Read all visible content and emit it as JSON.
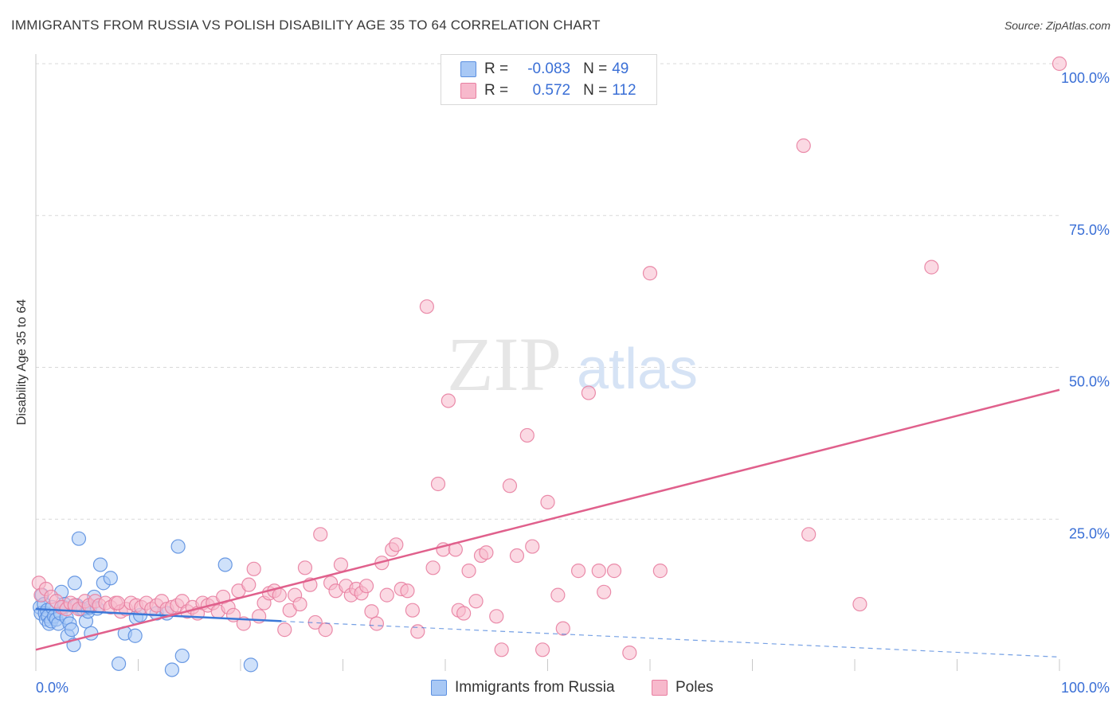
{
  "title": "IMMIGRANTS FROM RUSSIA VS POLISH DISABILITY AGE 35 TO 64 CORRELATION CHART",
  "source": "Source: ZipAtlas.com",
  "watermark": {
    "zip": "ZIP",
    "atlas": "atlas"
  },
  "legend": {
    "rows": [
      {
        "r_label": "R =",
        "r_value": "-0.083",
        "n_label": "N =",
        "n_value": "49"
      },
      {
        "r_label": "R =",
        "r_value": "0.572",
        "n_label": "N =",
        "n_value": "112"
      }
    ]
  },
  "bottom_legend": {
    "series1": "Immigrants from Russia",
    "series2": "Poles"
  },
  "colors": {
    "blue_fill": "#a8c8f5",
    "blue_stroke": "#5b8fe0",
    "blue_line": "#3b78d8",
    "pink_fill": "#f7b9cc",
    "pink_stroke": "#e87fa1",
    "pink_line": "#e0608c",
    "axis_text": "#3a6fd6",
    "grid": "#d9d9d9"
  },
  "chart_data": {
    "type": "scatter",
    "title": "IMMIGRANTS FROM RUSSIA VS POLISH DISABILITY AGE 35 TO 64 CORRELATION CHART",
    "xlabel": "",
    "ylabel": "Disability Age 35 to 64",
    "xlim": [
      0,
      100
    ],
    "ylim": [
      0,
      100
    ],
    "x_tick_labels": [
      "0.0%",
      "100.0%"
    ],
    "y_tick_labels": [
      "25.0%",
      "50.0%",
      "75.0%",
      "100.0%"
    ],
    "y_ticks": [
      25,
      50,
      75,
      100
    ],
    "series": [
      {
        "name": "Immigrants from Russia",
        "R": -0.083,
        "N": 49,
        "trend_solid": {
          "x": [
            0,
            24
          ],
          "y": [
            10.2,
            8.2
          ]
        },
        "trend_dashed": {
          "x": [
            24,
            100
          ],
          "y": [
            8.2,
            2.3
          ]
        },
        "points": [
          [
            0.4,
            10.5
          ],
          [
            0.5,
            9.5
          ],
          [
            0.6,
            12.5
          ],
          [
            0.8,
            11
          ],
          [
            0.9,
            9.5
          ],
          [
            1.0,
            8.5
          ],
          [
            1.1,
            10
          ],
          [
            1.2,
            9
          ],
          [
            1.3,
            7.8
          ],
          [
            1.5,
            8.2
          ],
          [
            1.6,
            10.5
          ],
          [
            1.8,
            9
          ],
          [
            2.0,
            8.5
          ],
          [
            2.2,
            7.8
          ],
          [
            2.4,
            9.5
          ],
          [
            2.5,
            13
          ],
          [
            2.7,
            10.5
          ],
          [
            2.8,
            11
          ],
          [
            3.0,
            8.8
          ],
          [
            3.1,
            5.8
          ],
          [
            3.3,
            7.8
          ],
          [
            3.5,
            6.8
          ],
          [
            3.7,
            4.3
          ],
          [
            3.8,
            14.5
          ],
          [
            4.0,
            10.8
          ],
          [
            4.2,
            21.8
          ],
          [
            4.4,
            10.2
          ],
          [
            4.6,
            10.2
          ],
          [
            4.9,
            8.2
          ],
          [
            5.1,
            9.8
          ],
          [
            5.3,
            10.5
          ],
          [
            5.4,
            6.2
          ],
          [
            5.7,
            12.2
          ],
          [
            6.3,
            17.5
          ],
          [
            6.6,
            14.5
          ],
          [
            7.3,
            15.3
          ],
          [
            8.1,
            1.2
          ],
          [
            8.7,
            6.2
          ],
          [
            9.7,
            5.8
          ],
          [
            9.8,
            8.8
          ],
          [
            10.2,
            9.2
          ],
          [
            11.8,
            9.5
          ],
          [
            12.8,
            9.5
          ],
          [
            13.3,
            0.2
          ],
          [
            13.9,
            20.5
          ],
          [
            14.3,
            2.5
          ],
          [
            18.5,
            17.5
          ],
          [
            21.0,
            1.0
          ],
          [
            6.0,
            10.3
          ]
        ]
      },
      {
        "name": "Poles",
        "R": 0.572,
        "N": 112,
        "trend_solid": {
          "x": [
            0,
            100
          ],
          "y": [
            3.5,
            46.3
          ]
        },
        "points": [
          [
            0.3,
            14.5
          ],
          [
            0.5,
            12.5
          ],
          [
            1.0,
            13.5
          ],
          [
            1.5,
            12.2
          ],
          [
            2.0,
            11.5
          ],
          [
            2.5,
            10.5
          ],
          [
            3.0,
            10.2
          ],
          [
            3.4,
            11.2
          ],
          [
            3.8,
            10.8
          ],
          [
            4.2,
            10.2
          ],
          [
            4.8,
            11.5
          ],
          [
            5.2,
            10.8
          ],
          [
            5.8,
            11.5
          ],
          [
            6.2,
            10.8
          ],
          [
            6.8,
            11.2
          ],
          [
            7.3,
            10.5
          ],
          [
            7.8,
            11.2
          ],
          [
            8.3,
            9.8
          ],
          [
            8.8,
            10.2
          ],
          [
            9.3,
            11.2
          ],
          [
            9.8,
            10.8
          ],
          [
            10.3,
            10.5
          ],
          [
            10.8,
            11.2
          ],
          [
            11.3,
            10.2
          ],
          [
            11.8,
            10.8
          ],
          [
            12.3,
            11.5
          ],
          [
            12.8,
            10.2
          ],
          [
            13.3,
            10.5
          ],
          [
            13.8,
            10.8
          ],
          [
            14.3,
            11.5
          ],
          [
            14.8,
            9.8
          ],
          [
            15.3,
            10.5
          ],
          [
            15.8,
            9.5
          ],
          [
            16.3,
            11.2
          ],
          [
            16.8,
            10.8
          ],
          [
            17.3,
            11.2
          ],
          [
            17.8,
            9.8
          ],
          [
            18.3,
            12.2
          ],
          [
            18.8,
            10.5
          ],
          [
            19.3,
            9.2
          ],
          [
            19.8,
            13.2
          ],
          [
            20.3,
            7.8
          ],
          [
            20.8,
            14.2
          ],
          [
            21.3,
            16.8
          ],
          [
            21.8,
            9.0
          ],
          [
            22.3,
            11.2
          ],
          [
            22.8,
            12.8
          ],
          [
            23.3,
            13.2
          ],
          [
            23.8,
            12.5
          ],
          [
            24.3,
            6.8
          ],
          [
            24.8,
            10.0
          ],
          [
            25.3,
            12.5
          ],
          [
            25.8,
            11.0
          ],
          [
            26.3,
            17.0
          ],
          [
            26.8,
            14.2
          ],
          [
            27.3,
            8.0
          ],
          [
            27.8,
            22.5
          ],
          [
            28.3,
            6.8
          ],
          [
            28.8,
            14.5
          ],
          [
            29.3,
            13.2
          ],
          [
            29.8,
            17.5
          ],
          [
            30.3,
            14.0
          ],
          [
            30.8,
            12.5
          ],
          [
            31.3,
            13.5
          ],
          [
            31.8,
            12.8
          ],
          [
            32.3,
            14.0
          ],
          [
            32.8,
            9.8
          ],
          [
            33.3,
            7.8
          ],
          [
            33.8,
            17.8
          ],
          [
            34.3,
            12.5
          ],
          [
            34.8,
            20.0
          ],
          [
            35.2,
            20.8
          ],
          [
            35.7,
            13.5
          ],
          [
            36.3,
            13.2
          ],
          [
            36.8,
            10.0
          ],
          [
            37.3,
            6.5
          ],
          [
            38.2,
            60.0
          ],
          [
            38.8,
            17.0
          ],
          [
            39.3,
            30.8
          ],
          [
            39.8,
            20.0
          ],
          [
            40.3,
            44.5
          ],
          [
            41.0,
            20.0
          ],
          [
            41.3,
            10.0
          ],
          [
            41.8,
            9.5
          ],
          [
            42.3,
            16.5
          ],
          [
            43.0,
            11.5
          ],
          [
            43.5,
            19.0
          ],
          [
            44.0,
            19.5
          ],
          [
            45.0,
            9.0
          ],
          [
            45.5,
            3.5
          ],
          [
            46.3,
            30.5
          ],
          [
            47.0,
            19.0
          ],
          [
            48.0,
            38.8
          ],
          [
            48.5,
            20.5
          ],
          [
            49.5,
            3.5
          ],
          [
            50.0,
            27.8
          ],
          [
            51.0,
            12.5
          ],
          [
            51.5,
            7.0
          ],
          [
            53.0,
            16.5
          ],
          [
            54.0,
            45.8
          ],
          [
            55.0,
            16.5
          ],
          [
            55.5,
            13.0
          ],
          [
            56.5,
            16.5
          ],
          [
            58.0,
            3.0
          ],
          [
            60.0,
            65.5
          ],
          [
            61.0,
            16.5
          ],
          [
            75.0,
            86.5
          ],
          [
            75.5,
            22.5
          ],
          [
            80.5,
            11.0
          ],
          [
            87.5,
            66.5
          ],
          [
            100.0,
            100.0
          ],
          [
            8.0,
            11.2
          ]
        ]
      }
    ]
  }
}
